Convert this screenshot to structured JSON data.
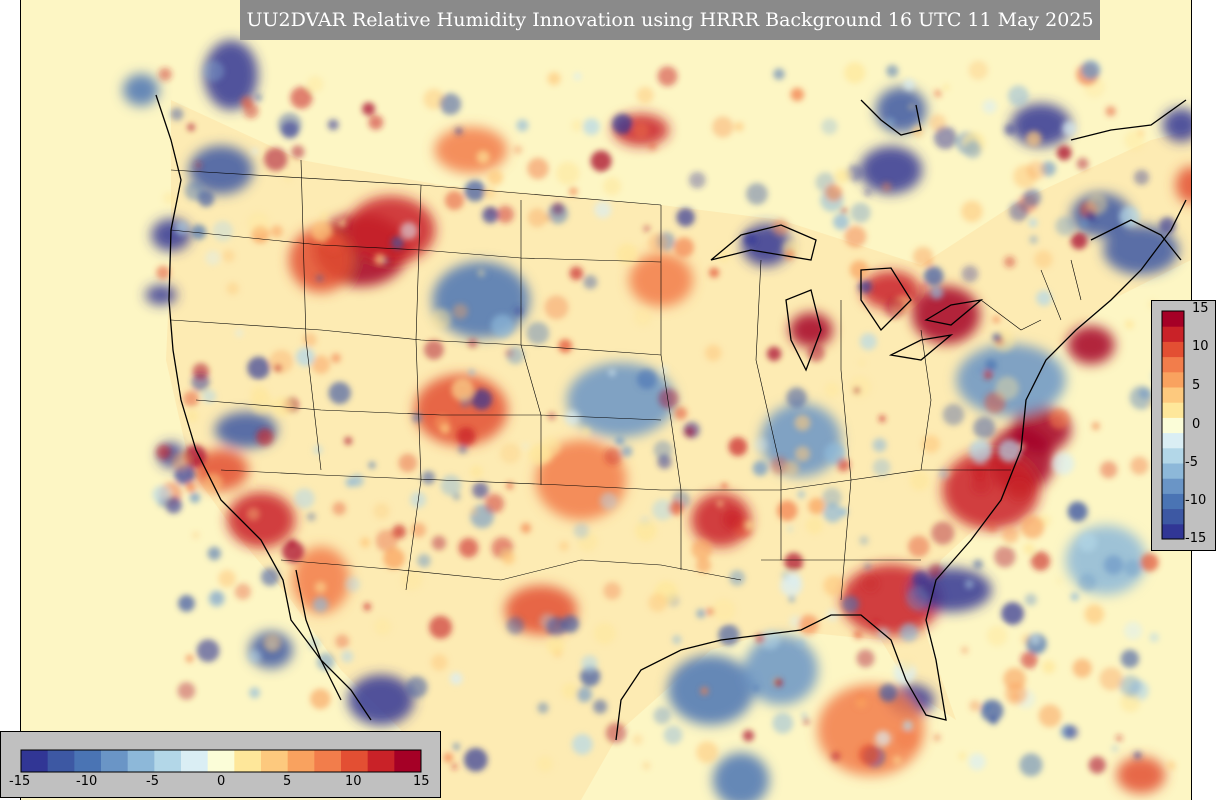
{
  "title": "UU2DVAR Relative Humidity Innovation using HRRR Background 16 UTC 11 May 2025",
  "colorbar": {
    "range": [
      -15,
      15
    ],
    "ticks": [
      "-15",
      "-10",
      "-5",
      "0",
      "5",
      "10",
      "15"
    ],
    "colors": [
      "#313695",
      "#3d58a3",
      "#4a74b4",
      "#6a95c6",
      "#8db8d9",
      "#b3d7e8",
      "#daeef4",
      "#fbfdd8",
      "#fee79a",
      "#fdc97e",
      "#f9a25f",
      "#f27d4b",
      "#e34f33",
      "#c92228",
      "#a50026"
    ]
  }
}
